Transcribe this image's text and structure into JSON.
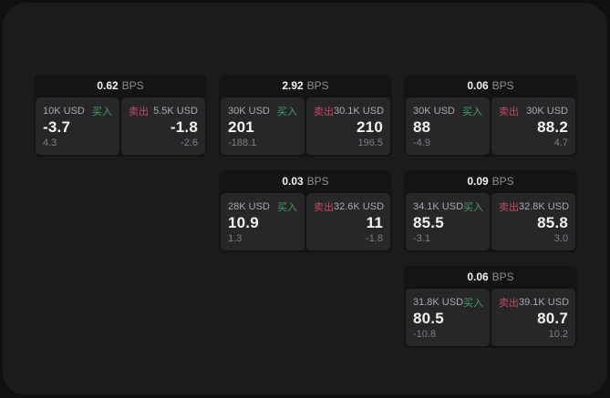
{
  "labels": {
    "bps_unit": "BPS",
    "buy": "买入",
    "sell": "卖出"
  },
  "theme": {
    "page_bg": "#101012",
    "panel_bg": "#1b1b1d",
    "card_bg": "#141415",
    "tile_bg": "#27272a",
    "text_primary": "#f2f2f3",
    "text_secondary": "#a9a9ae",
    "text_muted": "#7e7e83",
    "buy_color": "#3fa15e",
    "sell_color": "#c04a60"
  },
  "cards": [
    {
      "row": 1,
      "col": 1,
      "bps": "0.62",
      "buy": {
        "size": "10K USD",
        "price": "-3.7",
        "delta": "4.3"
      },
      "sell": {
        "size": "5.5K USD",
        "price": "-1.8",
        "delta": "-2.6"
      }
    },
    {
      "row": 1,
      "col": 2,
      "bps": "2.92",
      "buy": {
        "size": "30K USD",
        "price": "201",
        "delta": "-188.1"
      },
      "sell": {
        "size": "30.1K USD",
        "price": "210",
        "delta": "196.5"
      }
    },
    {
      "row": 1,
      "col": 3,
      "bps": "0.06",
      "buy": {
        "size": "30K USD",
        "price": "88",
        "delta": "-4.9"
      },
      "sell": {
        "size": "30K USD",
        "price": "88.2",
        "delta": "4.7"
      }
    },
    {
      "row": 2,
      "col": 2,
      "bps": "0.03",
      "buy": {
        "size": "28K USD",
        "price": "10.9",
        "delta": "1.3"
      },
      "sell": {
        "size": "32.6K USD",
        "price": "11",
        "delta": "-1.8"
      }
    },
    {
      "row": 2,
      "col": 3,
      "bps": "0.09",
      "buy": {
        "size": "34.1K USD",
        "price": "85.5",
        "delta": "-3.1"
      },
      "sell": {
        "size": "32.8K USD",
        "price": "85.8",
        "delta": "3.0"
      }
    },
    {
      "row": 3,
      "col": 3,
      "bps": "0.06",
      "buy": {
        "size": "31.8K USD",
        "price": "80.5",
        "delta": "-10.8"
      },
      "sell": {
        "size": "39.1K USD",
        "price": "80.7",
        "delta": "10.2"
      }
    }
  ]
}
